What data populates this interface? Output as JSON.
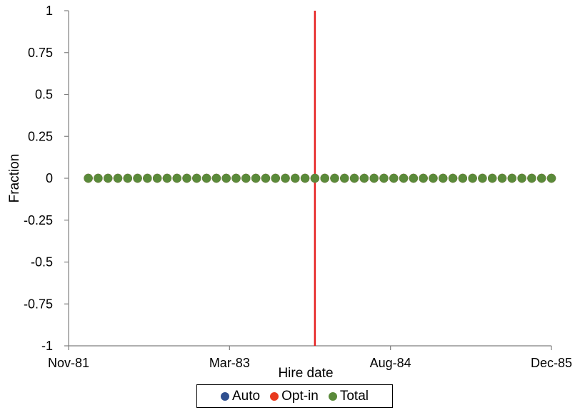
{
  "chart_data": {
    "type": "scatter",
    "title": "",
    "xlabel": "Hire date",
    "ylabel": "Fraction",
    "ylim": [
      -1,
      1
    ],
    "yticks": [
      "1",
      "0.75",
      "0.5",
      "0.25",
      "0",
      "-0.25",
      "-0.5",
      "-0.75",
      "-1"
    ],
    "xlim": [
      "1981-11",
      "1985-12"
    ],
    "xticks": [
      "Nov-81",
      "Mar-83",
      "Aug-84",
      "Dec-85"
    ],
    "grid": false,
    "legend_position": "bottom",
    "x": [
      "1982-01",
      "1982-02",
      "1982-03",
      "1982-04",
      "1982-05",
      "1982-06",
      "1982-07",
      "1982-08",
      "1982-09",
      "1982-10",
      "1982-11",
      "1982-12",
      "1983-01",
      "1983-02",
      "1983-03",
      "1983-04",
      "1983-05",
      "1983-06",
      "1983-07",
      "1983-08",
      "1983-09",
      "1983-10",
      "1983-11",
      "1983-12",
      "1984-01",
      "1984-02",
      "1984-03",
      "1984-04",
      "1984-05",
      "1984-06",
      "1984-07",
      "1984-08",
      "1984-09",
      "1984-10",
      "1984-11",
      "1984-12",
      "1985-01",
      "1985-02",
      "1985-03",
      "1985-04",
      "1985-05",
      "1985-06",
      "1985-07",
      "1985-08",
      "1985-09",
      "1985-10",
      "1985-11",
      "1985-12"
    ],
    "series": [
      {
        "name": "Auto",
        "color": "#2f4f8f",
        "value_all": 0
      },
      {
        "name": "Opt-in",
        "color": "#e8391e",
        "value_all": 0
      },
      {
        "name": "Total",
        "color": "#5a8a3a",
        "value_all": 0
      }
    ],
    "reference_line": {
      "x": "1983-12",
      "color": "#e62020"
    }
  }
}
